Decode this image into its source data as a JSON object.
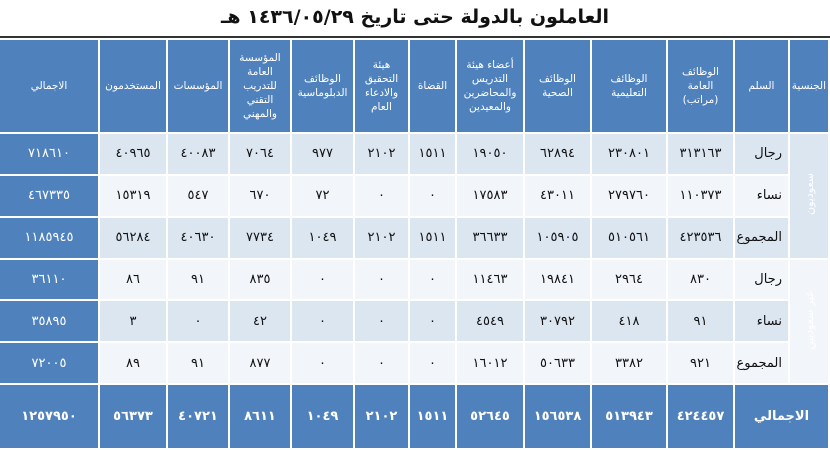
{
  "header": {
    "title": "العاملون بالدولة حتى تاريخ ١٤٣٦/٠٥/٢٩ هـ"
  },
  "table": {
    "columns": [
      "الجنسية",
      "السلم",
      "الوظائف العامة (مراتب)",
      "الوظائف التعليمية",
      "الوظائف الصحية",
      "أعضاء هيئة التدريس والمحاضرين والمعيدين",
      "القضاة",
      "هيئة التحقيق والادعاء العام",
      "الوظائف الدبلوماسية",
      "المؤسسة العامة للتدريب التقني والمهني",
      "المؤسسات",
      "المستخدمون",
      "الاجمالي"
    ],
    "groups": [
      {
        "label": "سعوديون",
        "rows": [
          {
            "label": "رجال",
            "values": [
              "٣١٣١٦٣",
              "٢٣٠٨٠١",
              "٦٢٨٩٤",
              "١٩٠٥٠",
              "١٥١١",
              "٢١٠٢",
              "٩٧٧",
              "٧٠٦٤",
              "٤٠٠٨٣",
              "٤٠٩٦٥",
              "٧١٨٦١٠"
            ]
          },
          {
            "label": "نساء",
            "values": [
              "١١٠٣٧٣",
              "٢٧٩٧٦٠",
              "٤٣٠١١",
              "١٧٥٨٣",
              "٠",
              "٠",
              "٧٢",
              "٦٧٠",
              "٥٤٧",
              "١٥٣١٩",
              "٤٦٧٣٣٥"
            ]
          },
          {
            "label": "المجموع",
            "values": [
              "٤٢٣٥٣٦",
              "٥١٠٥٦١",
              "١٠٥٩٠٥",
              "٣٦٦٣٣",
              "١٥١١",
              "٢١٠٢",
              "١٠٤٩",
              "٧٧٣٤",
              "٤٠٦٣٠",
              "٥٦٢٨٤",
              "١١٨٥٩٤٥"
            ]
          }
        ]
      },
      {
        "label": "غير سعوديين",
        "rows": [
          {
            "label": "رجال",
            "values": [
              "٨٣٠",
              "٢٩٦٤",
              "١٩٨٤١",
              "١١٤٦٣",
              "٠",
              "٠",
              "٠",
              "٨٣٥",
              "٩١",
              "٨٦",
              "٣٦١١٠"
            ]
          },
          {
            "label": "نساء",
            "values": [
              "٩١",
              "٤١٨",
              "٣٠٧٩٢",
              "٤٥٤٩",
              "٠",
              "٠",
              "٠",
              "٤٢",
              "٠",
              "٣",
              "٣٥٨٩٥"
            ]
          },
          {
            "label": "المجموع",
            "values": [
              "٩٢١",
              "٣٣٨٢",
              "٥٠٦٣٣",
              "١٦٠١٢",
              "٠",
              "٠",
              "٠",
              "٨٧٧",
              "٩١",
              "٨٩",
              "٧٢٠٠٥"
            ]
          }
        ]
      }
    ],
    "total": {
      "label": "الاجمالي",
      "values": [
        "٤٢٤٤٥٧",
        "٥١٣٩٤٣",
        "١٥٦٥٣٨",
        "٥٢٦٤٥",
        "١٥١١",
        "٢١٠٢",
        "١٠٤٩",
        "٨٦١١",
        "٤٠٧٢١",
        "٥٦٣٧٣",
        "١٢٥٧٩٥٠"
      ]
    }
  }
}
